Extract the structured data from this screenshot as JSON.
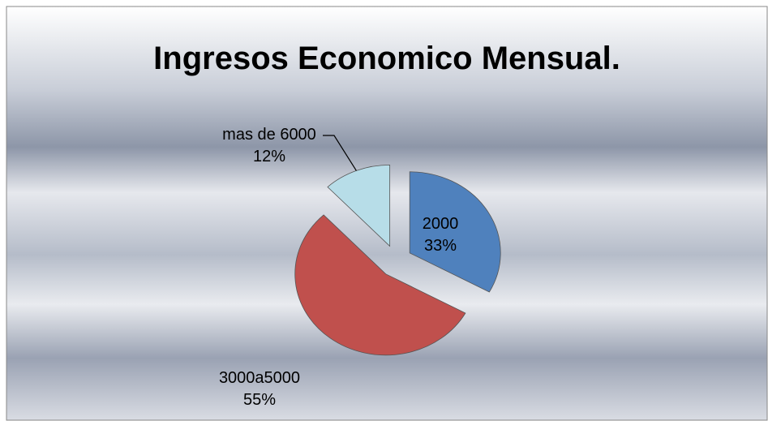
{
  "chart_data": {
    "type": "pie",
    "title": "Ingresos Economico Mensual.",
    "categories": [
      "2000",
      "3000a5000",
      "mas de 6000"
    ],
    "values": [
      33,
      55,
      12
    ],
    "value_labels": [
      "33%",
      "55%",
      "12%"
    ],
    "colors": [
      "#4f81bd",
      "#c0504d",
      "#b7dde8"
    ]
  }
}
